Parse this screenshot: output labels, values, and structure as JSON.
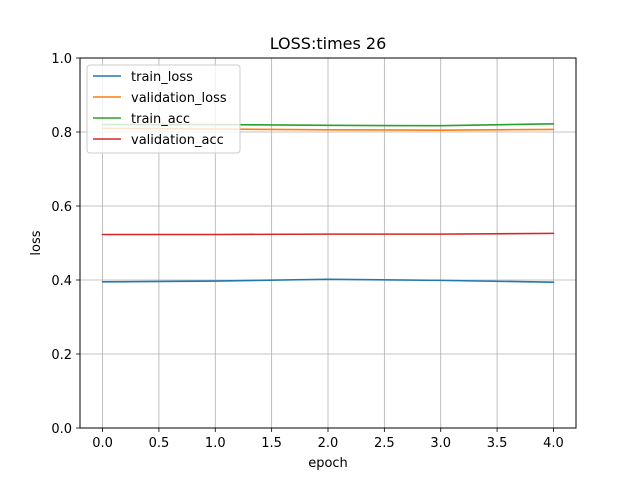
{
  "chart_data": {
    "type": "line",
    "title": "LOSS:times 26",
    "xlabel": "epoch",
    "ylabel": "loss",
    "xlim": [
      -0.2,
      4.2
    ],
    "ylim": [
      0.0,
      1.0
    ],
    "xticks": [
      0.0,
      0.5,
      1.0,
      1.5,
      2.0,
      2.5,
      3.0,
      3.5,
      4.0
    ],
    "xtick_labels": [
      "0.0",
      "0.5",
      "1.0",
      "1.5",
      "2.0",
      "2.5",
      "3.0",
      "3.5",
      "4.0"
    ],
    "yticks": [
      0.0,
      0.2,
      0.4,
      0.6,
      0.8,
      1.0
    ],
    "ytick_labels": [
      "0.0",
      "0.2",
      "0.4",
      "0.6",
      "0.8",
      "1.0"
    ],
    "grid": true,
    "legend_position": "top-left",
    "x": [
      0,
      1,
      2,
      3,
      4
    ],
    "series": [
      {
        "name": "train_loss",
        "color": "#1f77b4",
        "values": [
          0.395,
          0.397,
          0.402,
          0.399,
          0.394
        ]
      },
      {
        "name": "validation_loss",
        "color": "#ff7f0e",
        "values": [
          0.81,
          0.808,
          0.806,
          0.805,
          0.807
        ]
      },
      {
        "name": "train_acc",
        "color": "#2ca02c",
        "values": [
          0.82,
          0.82,
          0.818,
          0.817,
          0.822
        ]
      },
      {
        "name": "validation_acc",
        "color": "#d62728",
        "values": [
          0.523,
          0.523,
          0.524,
          0.524,
          0.526
        ]
      }
    ]
  }
}
